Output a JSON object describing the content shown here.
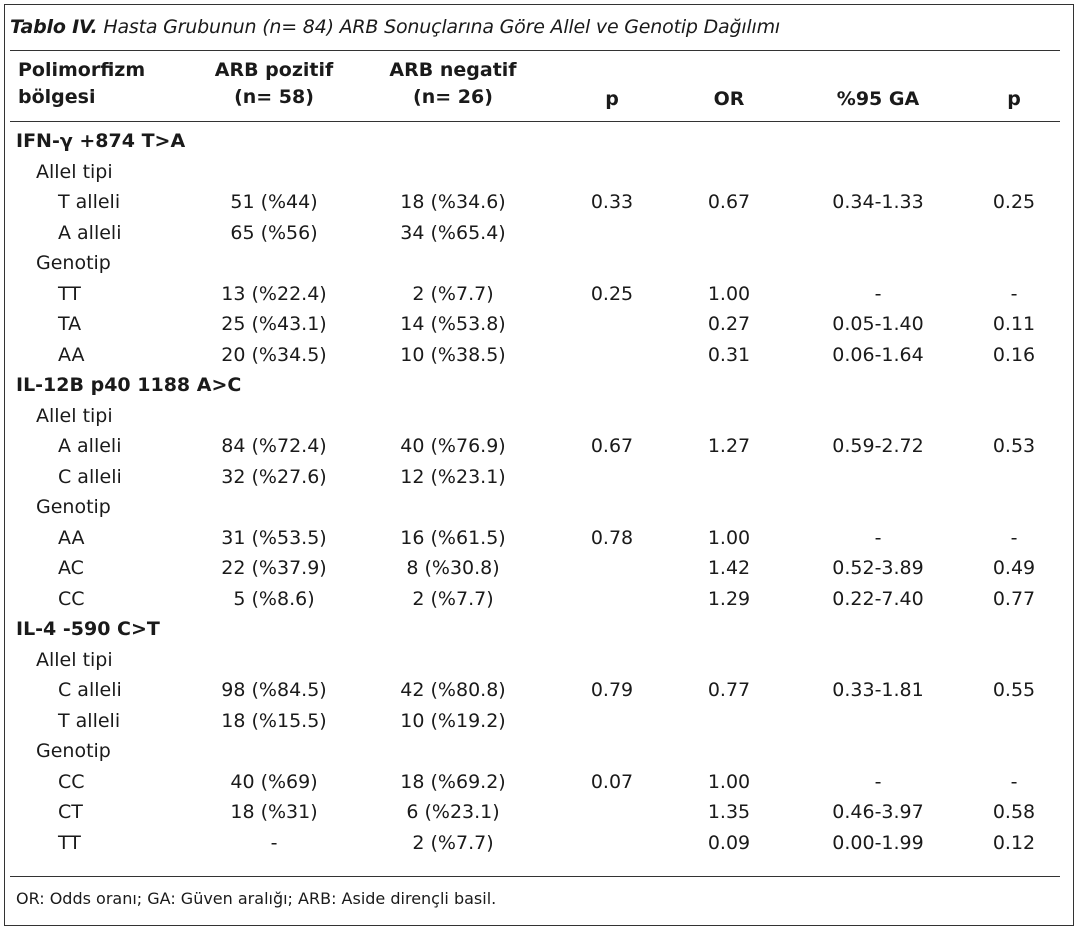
{
  "caption": {
    "lead": "Tablo IV.",
    "rest": " Hasta Grubunun (n= 84) ARB Sonuçlarına Göre Allel ve Genotip Dağılımı"
  },
  "headers": {
    "col1_line1": "Polimorfizm",
    "col1_line2": "bölgesi",
    "col2_line1": "ARB pozitif",
    "col2_line2": "(n= 58)",
    "col3_line1": "ARB negatif",
    "col3_line2": "(n= 26)",
    "col4": "p",
    "col5": "OR",
    "col6": "%95 GA",
    "col7": "p"
  },
  "rows": [
    {
      "kind": "section",
      "label": "IFN-γ +874 T>A"
    },
    {
      "kind": "group",
      "label": "Allel tipi"
    },
    {
      "kind": "data",
      "label": "T alleli",
      "pos": "51 (%44)",
      "neg": "18 (%34.6)",
      "p": "0.33",
      "or": "0.67",
      "ci": "0.34-1.33",
      "p2": "0.25"
    },
    {
      "kind": "data",
      "label": "A alleli",
      "pos": "65 (%56)",
      "neg": "34 (%65.4)",
      "p": "",
      "or": "",
      "ci": "",
      "p2": ""
    },
    {
      "kind": "group",
      "label": "Genotip"
    },
    {
      "kind": "data",
      "label": "TT",
      "pos": "13 (%22.4)",
      "neg": "2 (%7.7)",
      "p": "0.25",
      "or": "1.00",
      "ci": "-",
      "p2": "-"
    },
    {
      "kind": "data",
      "label": "TA",
      "pos": "25 (%43.1)",
      "neg": "14 (%53.8)",
      "p": "",
      "or": "0.27",
      "ci": "0.05-1.40",
      "p2": "0.11"
    },
    {
      "kind": "data",
      "label": "AA",
      "pos": "20 (%34.5)",
      "neg": "10 (%38.5)",
      "p": "",
      "or": "0.31",
      "ci": "0.06-1.64",
      "p2": "0.16"
    },
    {
      "kind": "section",
      "label": "IL-12B p40 1188 A>C"
    },
    {
      "kind": "group",
      "label": "Allel tipi"
    },
    {
      "kind": "data",
      "label": "A alleli",
      "pos": "84 (%72.4)",
      "neg": "40 (%76.9)",
      "p": "0.67",
      "or": "1.27",
      "ci": "0.59-2.72",
      "p2": "0.53"
    },
    {
      "kind": "data",
      "label": "C alleli",
      "pos": "32 (%27.6)",
      "neg": "12 (%23.1)",
      "p": "",
      "or": "",
      "ci": "",
      "p2": ""
    },
    {
      "kind": "group",
      "label": "Genotip"
    },
    {
      "kind": "data",
      "label": "AA",
      "pos": "31 (%53.5)",
      "neg": "16 (%61.5)",
      "p": "0.78",
      "or": "1.00",
      "ci": "-",
      "p2": "-"
    },
    {
      "kind": "data",
      "label": "AC",
      "pos": "22 (%37.9)",
      "neg": "8 (%30.8)",
      "p": "",
      "or": "1.42",
      "ci": "0.52-3.89",
      "p2": "0.49"
    },
    {
      "kind": "data",
      "label": "CC",
      "pos": "5 (%8.6)",
      "neg": "2 (%7.7)",
      "p": "",
      "or": "1.29",
      "ci": "0.22-7.40",
      "p2": "0.77"
    },
    {
      "kind": "section",
      "label": "IL-4 -590 C>T"
    },
    {
      "kind": "group",
      "label": "Allel tipi"
    },
    {
      "kind": "data",
      "label": "C alleli",
      "pos": "98 (%84.5)",
      "neg": "42 (%80.8)",
      "p": "0.79",
      "or": "0.77",
      "ci": "0.33-1.81",
      "p2": "0.55"
    },
    {
      "kind": "data",
      "label": "T alleli",
      "pos": "18 (%15.5)",
      "neg": "10 (%19.2)",
      "p": "",
      "or": "",
      "ci": "",
      "p2": ""
    },
    {
      "kind": "group",
      "label": "Genotip"
    },
    {
      "kind": "data",
      "label": "CC",
      "pos": "40 (%69)",
      "neg": "18 (%69.2)",
      "p": "0.07",
      "or": "1.00",
      "ci": "-",
      "p2": "-"
    },
    {
      "kind": "data",
      "label": "CT",
      "pos": "18 (%31)",
      "neg": "6 (%23.1)",
      "p": "",
      "or": "1.35",
      "ci": "0.46-3.97",
      "p2": "0.58"
    },
    {
      "kind": "data",
      "label": "TT",
      "pos": "-",
      "neg": "2 (%7.7)",
      "p": "",
      "or": "0.09",
      "ci": "0.00-1.99",
      "p2": "0.12"
    }
  ],
  "footnote": "OR: Odds oranı; GA: Güven aralığı; ARB: Aside dirençli basil."
}
